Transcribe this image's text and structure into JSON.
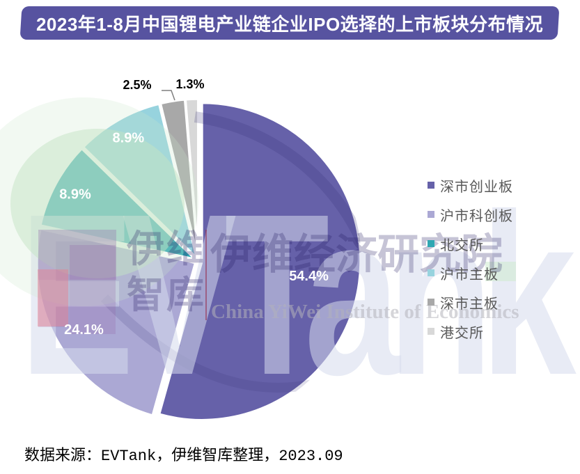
{
  "title": {
    "text": "2023年1-8月中国锂电产业链企业IPO选择的上市板块分布情况",
    "bg_color": "#5753a0",
    "text_color": "#ffffff"
  },
  "chart_data": {
    "type": "pie",
    "title": "2023年1-8月中国锂电产业链企业IPO选择的上市板块分布情况",
    "categories": [
      "深市创业板",
      "沪市科创板",
      "北交所",
      "沪市主板",
      "深市主板",
      "港交所"
    ],
    "values": [
      54.4,
      24.1,
      8.9,
      8.9,
      2.5,
      1.3
    ],
    "unit": "%",
    "colors": [
      "#6661A9",
      "#ABA8D4",
      "#2FA7B2",
      "#97D3DE",
      "#A8A8A8",
      "#D8D8D8"
    ],
    "start_angle_deg": 0,
    "direction": "clockwise",
    "legend_position": "right",
    "inside_label_color": "#ffffff",
    "outside_label_color": "#000000",
    "slice_border_color": "#ffffff"
  },
  "watermark": {
    "cn_left_top": "伊维",
    "cn_left_bottom": "智库",
    "cn_main": "伊维经济研究院",
    "en_main": "China YiWei Institute of Economics",
    "brand": "EVTank"
  },
  "source_note": "数据来源：EVTank，伊维智库整理，2023.09"
}
